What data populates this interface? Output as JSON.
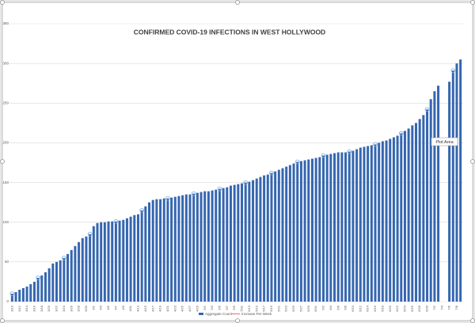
{
  "chart_data": {
    "type": "bar",
    "title": "CONFIRMED COVID-19 INFECTIONS IN WEST HOLLYWOOD",
    "tooltip": "Plot Area",
    "categories": [
      "3/10",
      null,
      "3/12",
      null,
      "3/14",
      null,
      "3/16",
      null,
      "3/18",
      null,
      "3/20",
      null,
      "3/22",
      null,
      "3/24",
      null,
      "3/26",
      null,
      "3/28",
      null,
      "3/30",
      null,
      "4/1",
      null,
      "4/3",
      null,
      "4/5",
      null,
      "4/7",
      null,
      "4/9",
      null,
      "4/11",
      null,
      "4/13",
      null,
      "4/15",
      null,
      "4/17",
      null,
      "4/19",
      null,
      "4/21",
      null,
      "4/23",
      null,
      "4/25",
      null,
      "4/27",
      null,
      "4/29",
      null,
      "5/1",
      null,
      "5/3",
      null,
      "5/5",
      null,
      "5/7",
      null,
      "5/9",
      null,
      "5/11",
      null,
      "5/13",
      null,
      "5/15",
      null,
      "5/17",
      null,
      "5/19",
      null,
      "5/21",
      null,
      "5/23",
      null,
      "5/25",
      null,
      "5/27",
      null,
      "5/29",
      null,
      "5/31",
      null,
      "6/2",
      null,
      "6/4",
      null,
      "6/6",
      null,
      "6/8",
      null,
      "6/10",
      null,
      "6/12",
      null,
      "6/14",
      null,
      "6/16",
      null,
      "6/18",
      null,
      "6/20",
      null,
      "6/22",
      null,
      "6/24",
      null,
      "6/26",
      null,
      "6/28",
      null,
      "6/30",
      null,
      "7/2",
      null,
      "7/4",
      null,
      "7/6",
      null,
      "7/8",
      null
    ],
    "series": [
      {
        "name": "Aggregate Count",
        "color": "#3566b0",
        "values": [
          10,
          12,
          15,
          17,
          19,
          22,
          25,
          30,
          33,
          37,
          42,
          48,
          50,
          52,
          55,
          60,
          65,
          70,
          75,
          80,
          82,
          85,
          95,
          99,
          100,
          100,
          101,
          101,
          101,
          102,
          103,
          105,
          107,
          109,
          110,
          115,
          120,
          125,
          128,
          129,
          129,
          130,
          130,
          131,
          132,
          133,
          134,
          135,
          135,
          136,
          137,
          138,
          139,
          139,
          140,
          141,
          142,
          143,
          144,
          146,
          147,
          148,
          149,
          150,
          151,
          153,
          155,
          157,
          159,
          160,
          162,
          164,
          166,
          168,
          170,
          172,
          174,
          176,
          177,
          178,
          179,
          180,
          181,
          182,
          184,
          185,
          186,
          187,
          188,
          188,
          188,
          189,
          190,
          192,
          194,
          195,
          196,
          197,
          198,
          200,
          202,
          203,
          205,
          207,
          209,
          212,
          215,
          218,
          222,
          225,
          230,
          235,
          242,
          255,
          265,
          272,
          null,
          null,
          277,
          291,
          300,
          305
        ]
      },
      {
        "name": "Increase Per Week",
        "color": "#e0605a",
        "values": [
          null,
          null,
          null,
          null,
          null,
          null,
          null,
          null,
          null,
          null,
          null,
          null,
          null,
          null,
          null,
          null,
          null,
          null,
          null,
          null,
          null,
          null,
          null,
          null,
          null,
          null,
          null,
          null,
          null,
          null,
          null,
          null,
          null,
          null,
          null,
          null,
          null,
          null,
          null,
          null,
          null,
          null,
          null,
          null,
          null,
          null,
          null,
          null,
          null,
          null,
          null,
          null,
          null,
          null,
          null,
          null,
          null,
          null,
          null,
          null,
          null,
          null,
          null,
          null,
          null,
          null,
          null,
          null,
          null,
          null,
          null,
          null,
          null,
          null,
          null,
          null,
          null,
          null,
          null,
          null,
          null,
          null,
          null,
          null,
          null,
          null,
          null,
          null,
          null,
          null,
          null,
          null,
          null,
          null,
          null,
          null,
          null,
          null,
          null,
          null,
          null,
          null,
          null,
          null,
          null,
          null,
          null,
          null,
          null,
          null,
          null,
          null,
          null,
          null,
          null,
          null,
          null,
          null,
          null,
          null,
          null,
          null
        ]
      }
    ],
    "ylim": [
      0,
      350
    ],
    "yticks": [
      0,
      50,
      100,
      150,
      200,
      250,
      300,
      350
    ],
    "grid": true
  }
}
